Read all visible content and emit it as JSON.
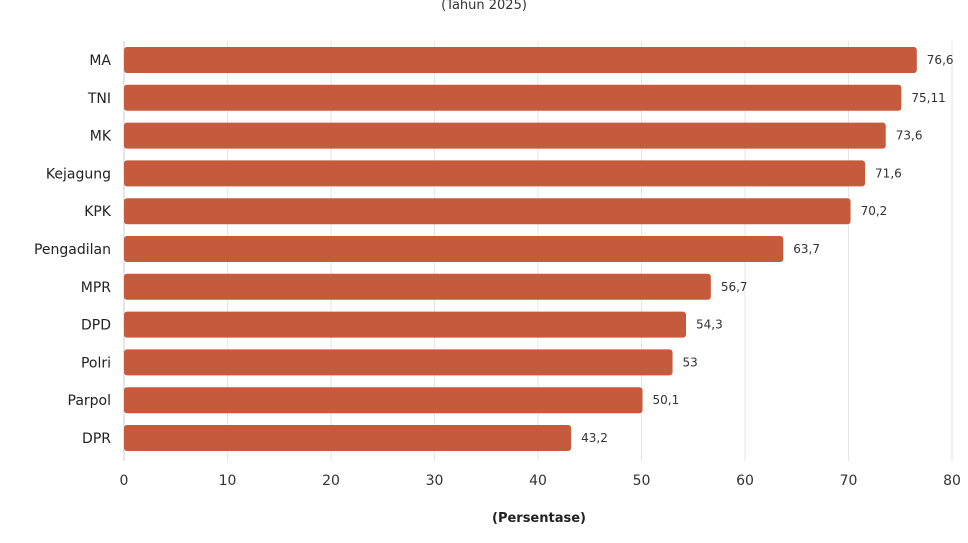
{
  "chart_data": {
    "type": "bar",
    "orientation": "horizontal",
    "subtitle": "(Tahun 2025)",
    "xlabel": "(Persentase)",
    "ylabel": "",
    "categories": [
      "MA",
      "TNI",
      "MK",
      "Kejagung",
      "KPK",
      "Pengadilan",
      "MPR",
      "DPD",
      "Polri",
      "Parpol",
      "DPR"
    ],
    "values": [
      76.6,
      75.11,
      73.6,
      71.6,
      70.2,
      63.7,
      56.7,
      54.3,
      53,
      50.1,
      43.2
    ],
    "value_labels": [
      "76,6",
      "75,11",
      "73,6",
      "71,6",
      "70,2",
      "63,7",
      "56,7",
      "54,3",
      "53",
      "50,1",
      "43,2"
    ],
    "xlim": [
      0,
      80
    ],
    "xticks": [
      0,
      10,
      20,
      30,
      40,
      50,
      60,
      70,
      80
    ],
    "xtick_labels": [
      "0",
      "10",
      "20",
      "30",
      "40",
      "50",
      "60",
      "70",
      "80"
    ],
    "grid": true,
    "bar_color": "#c65a3c"
  }
}
